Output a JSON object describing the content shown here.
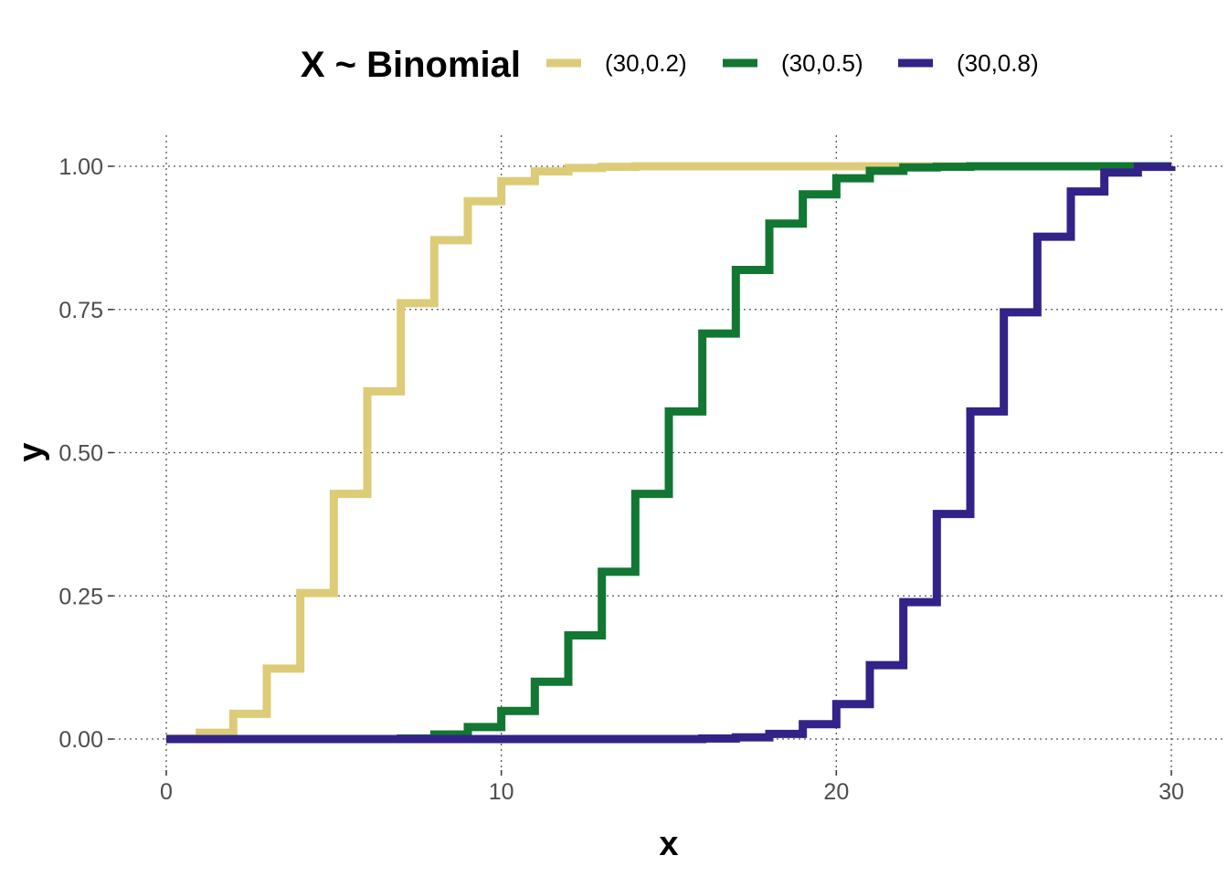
{
  "chart_data": {
    "type": "line",
    "subtype": "step-cdf",
    "title": "",
    "xlabel": "x",
    "ylabel": "y",
    "xlim": [
      0,
      30
    ],
    "ylim": [
      0,
      1
    ],
    "x_ticks": [
      0,
      10,
      20,
      30
    ],
    "x_tick_labels": [
      "0",
      "10",
      "20",
      "30"
    ],
    "y_ticks": [
      0,
      0.25,
      0.5,
      0.75,
      1
    ],
    "y_tick_labels": [
      "0.00",
      "0.25",
      "0.50",
      "0.75",
      "1.00"
    ],
    "grid": true,
    "legend": {
      "position": "top",
      "title": "X ~ Binomial"
    },
    "x": [
      0,
      1,
      2,
      3,
      4,
      5,
      6,
      7,
      8,
      9,
      10,
      11,
      12,
      13,
      14,
      15,
      16,
      17,
      18,
      19,
      20,
      21,
      22,
      23,
      24,
      25,
      26,
      27,
      28,
      29,
      30
    ],
    "series": [
      {
        "name": "(30,0.2)",
        "color": "#DDCC77",
        "values": [
          0.001,
          0.011,
          0.044,
          0.123,
          0.255,
          0.428,
          0.607,
          0.761,
          0.871,
          0.939,
          0.974,
          0.991,
          0.997,
          0.999,
          1,
          1,
          1,
          1,
          1,
          1,
          1,
          1,
          1,
          1,
          1,
          1,
          1,
          1,
          1,
          1,
          1
        ]
      },
      {
        "name": "(30,0.5)",
        "color": "#117733",
        "values": [
          0,
          0,
          0,
          0,
          0,
          0,
          0,
          0.001,
          0.008,
          0.021,
          0.049,
          0.1,
          0.181,
          0.292,
          0.428,
          0.572,
          0.708,
          0.819,
          0.9,
          0.951,
          0.979,
          0.992,
          0.998,
          0.999,
          1,
          1,
          1,
          1,
          1,
          1,
          1
        ]
      },
      {
        "name": "(30,0.8)",
        "color": "#332288",
        "values": [
          0,
          0,
          0,
          0,
          0,
          0,
          0,
          0,
          0,
          0,
          0,
          0,
          0,
          0,
          0,
          0,
          0.001,
          0.003,
          0.009,
          0.026,
          0.061,
          0.129,
          0.239,
          0.393,
          0.572,
          0.745,
          0.877,
          0.956,
          0.989,
          0.999,
          1
        ]
      }
    ]
  }
}
